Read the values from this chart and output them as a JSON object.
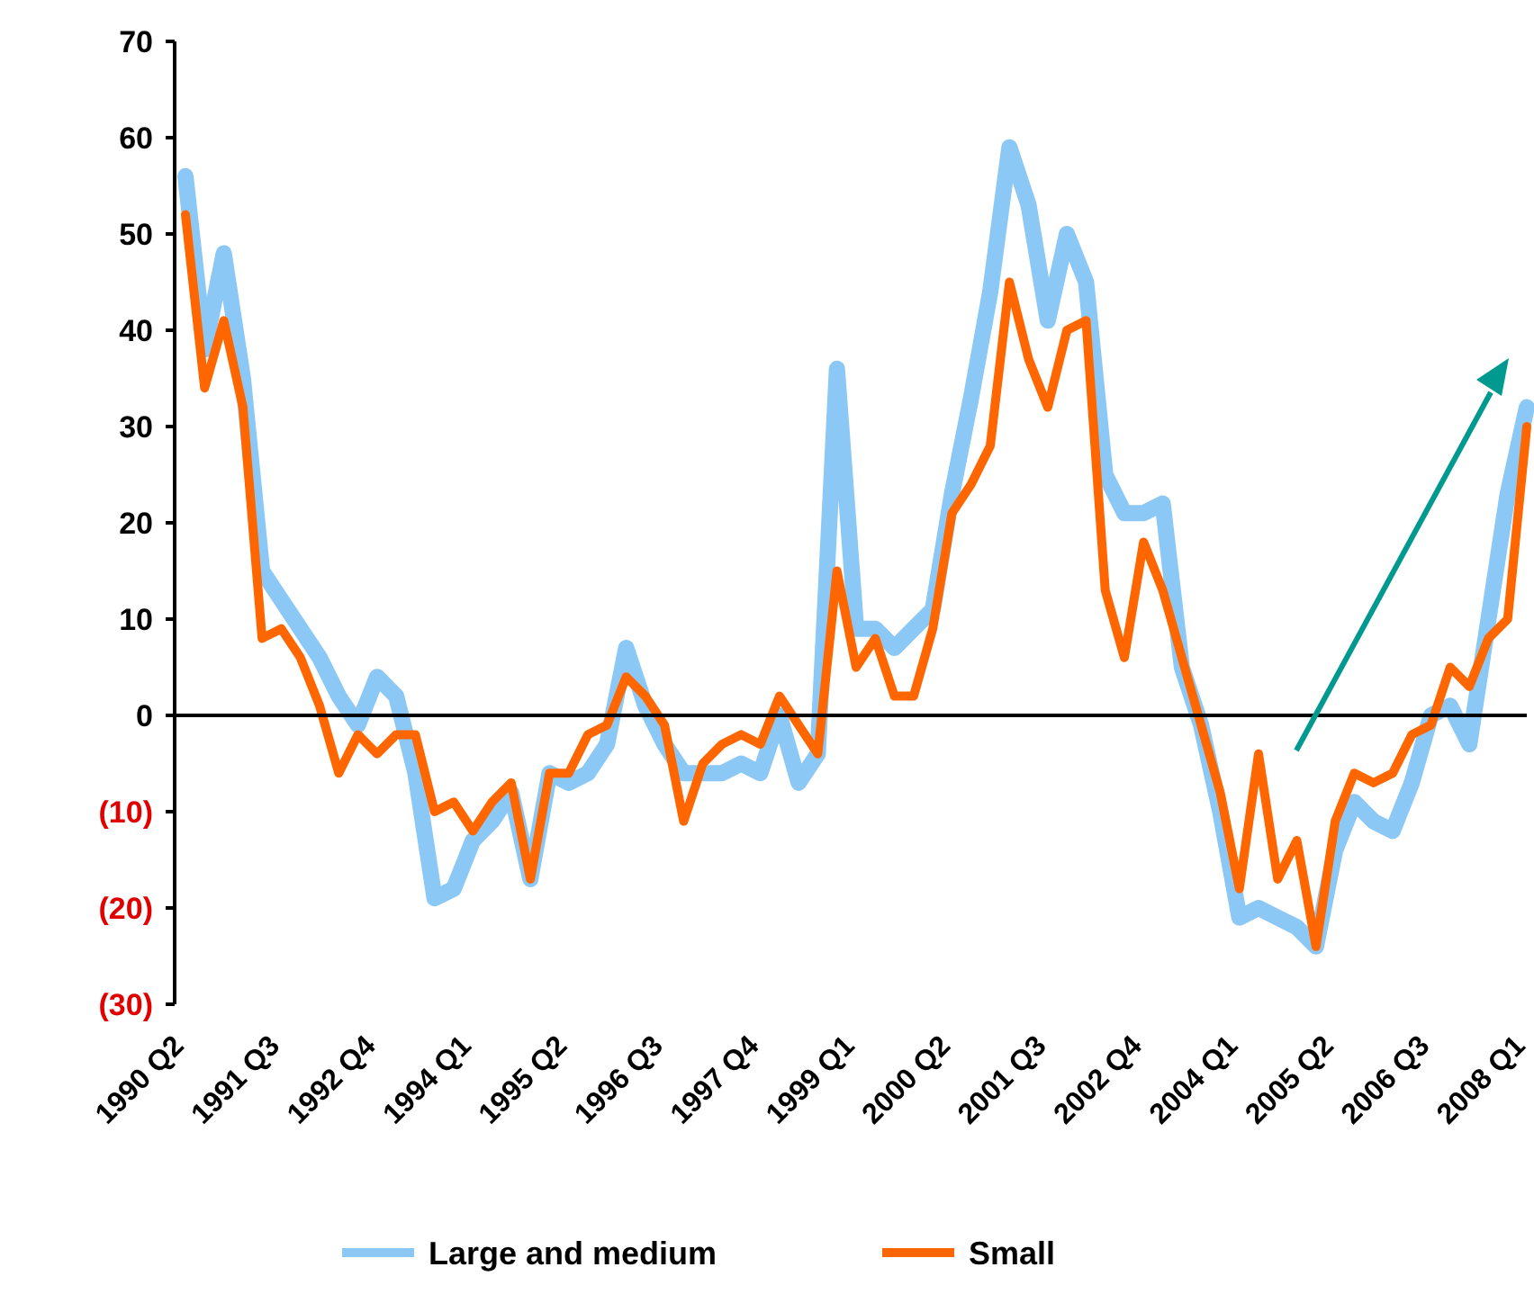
{
  "chart_data": {
    "type": "line",
    "categories": [
      "1990 Q2",
      null,
      null,
      null,
      null,
      "1991 Q3",
      null,
      null,
      null,
      null,
      "1992 Q4",
      null,
      null,
      null,
      null,
      "1994 Q1",
      null,
      null,
      null,
      null,
      "1995 Q2",
      null,
      null,
      null,
      null,
      "1996 Q3",
      null,
      null,
      null,
      null,
      "1997 Q4",
      null,
      null,
      null,
      null,
      "1999 Q1",
      null,
      null,
      null,
      null,
      "2000 Q2",
      null,
      null,
      null,
      null,
      "2001 Q3",
      null,
      null,
      null,
      null,
      "2002 Q4",
      null,
      null,
      null,
      null,
      "2004 Q1",
      null,
      null,
      null,
      null,
      "2005 Q2",
      null,
      null,
      null,
      null,
      "2006 Q3",
      null,
      null,
      null,
      null,
      "2008 Q1"
    ],
    "series": [
      {
        "name": "Large and medium",
        "color": "#8cc8f5",
        "values": [
          56,
          38,
          48,
          35,
          15,
          12,
          9,
          6,
          2,
          -1,
          4,
          2,
          -6,
          -19,
          -18,
          -13,
          -11,
          -8,
          -17,
          -6,
          -7,
          -6,
          -3,
          7,
          1,
          -3,
          -6,
          -6,
          -6,
          -5,
          -6,
          0,
          -7,
          -4,
          36,
          9,
          9,
          7,
          9,
          11,
          23,
          33,
          44,
          59,
          53,
          41,
          50,
          45,
          25,
          21,
          21,
          22,
          5,
          -1,
          -10,
          -21,
          -20,
          -21,
          -22,
          -24,
          -14,
          -9,
          -11,
          -12,
          -7,
          0,
          1,
          -3,
          10,
          23,
          32
        ]
      },
      {
        "name": "Small",
        "color": "#ff6600",
        "values": [
          52,
          34,
          41,
          32,
          8,
          9,
          6,
          1,
          -6,
          -2,
          -4,
          -2,
          -2,
          -10,
          -9,
          -12,
          -9,
          -7,
          -17,
          -6,
          -6,
          -2,
          -1,
          4,
          2,
          -1,
          -11,
          -5,
          -3,
          -2,
          -3,
          2,
          -1,
          -4,
          15,
          5,
          8,
          2,
          2,
          9,
          21,
          24,
          28,
          45,
          37,
          32,
          40,
          41,
          13,
          6,
          18,
          13,
          6,
          -1,
          -8,
          -18,
          -4,
          -17,
          -13,
          -24,
          -11,
          -6,
          -7,
          -6,
          -2,
          -1,
          5,
          3,
          8,
          10,
          30
        ]
      }
    ],
    "ylim": [
      -30,
      70
    ],
    "yticks": [
      {
        "value": -30,
        "label": "(30)"
      },
      {
        "value": -20,
        "label": "(20)"
      },
      {
        "value": -10,
        "label": "(10)"
      },
      0,
      10,
      20,
      30,
      40,
      50,
      60,
      70
    ],
    "legend": "bottom",
    "marker": "none",
    "line_style": "solid"
  }
}
